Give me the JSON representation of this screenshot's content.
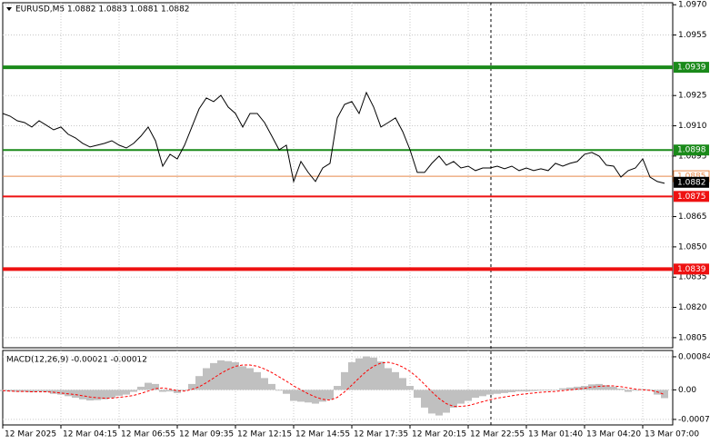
{
  "chart_data": {
    "type": "line",
    "title": "EURUSD,M5  1.0882 1.0883 1.0881 1.0882",
    "xticks": [
      "12 Mar 2025",
      "12 Mar 04:15",
      "12 Mar 06:55",
      "12 Mar 09:35",
      "12 Mar 12:15",
      "12 Mar 14:55",
      "12 Mar 17:35",
      "12 Mar 20:15",
      "12 Mar 22:55",
      "13 Mar 01:40",
      "13 Mar 04:20",
      "13 Mar 07:00"
    ],
    "series": [
      {
        "color": "#000000",
        "values": [
          1.09161,
          1.09148,
          1.09125,
          1.09116,
          1.09094,
          1.09125,
          1.09103,
          1.0908,
          1.09094,
          1.09058,
          1.0904,
          1.09013,
          1.08995,
          1.09004,
          1.09013,
          1.09026,
          1.09004,
          1.0899,
          1.09013,
          1.09049,
          1.09094,
          1.09026,
          1.089,
          1.08959,
          1.08936,
          1.09004,
          1.09094,
          1.09184,
          1.09238,
          1.0922,
          1.09251,
          1.09193,
          1.09161,
          1.09094,
          1.09161,
          1.09161,
          1.09116,
          1.09049,
          1.08981,
          1.09004,
          1.08824,
          1.08923,
          1.08869,
          1.08824,
          1.08891,
          1.08914,
          1.09139,
          1.09206,
          1.0922,
          1.09161,
          1.09265,
          1.09193,
          1.09094,
          1.09116,
          1.09139,
          1.09071,
          1.08981,
          1.08869,
          1.08869,
          1.08914,
          1.0895,
          1.08905,
          1.08923,
          1.08891,
          1.089,
          1.08878,
          1.08891,
          1.08891,
          1.089,
          1.08887,
          1.089,
          1.08878,
          1.08891,
          1.08878,
          1.08887,
          1.08878,
          1.08914,
          1.089,
          1.08914,
          1.08923,
          1.08959,
          1.08968,
          1.0895,
          1.08905,
          1.089,
          1.08846,
          1.08878,
          1.08891,
          1.08936,
          1.08846,
          1.08824,
          1.08815
        ]
      }
    ],
    "ylim": [
      1.08,
      1.0971
    ],
    "yticks": [
      {
        "value": 1.097,
        "label": "1.0970"
      },
      1.0955,
      1.0925,
      {
        "value": 1.091,
        "label": "1.0910"
      },
      1.0895,
      1.0865,
      {
        "value": 1.085,
        "label": "1.0850"
      },
      1.0835,
      {
        "value": 1.082,
        "label": "1.0820"
      },
      1.0805
    ],
    "grid": true,
    "levels": [
      {
        "value": 1.0939,
        "color": "#1a8a1a",
        "thick": true
      },
      {
        "value": 1.0898,
        "color": "#1a8a1a",
        "thick": false
      },
      {
        "value": 1.0885,
        "color": "#e8894a",
        "thick": false,
        "outline": true
      },
      {
        "value": 1.0875,
        "color": "#ee1111",
        "thick": false
      },
      {
        "value": 1.0839,
        "color": "#ee1111",
        "thick": true
      }
    ],
    "last_price": 1.0882,
    "macd": {
      "title": "MACD(12,26,9) -0.00021 -0.00012",
      "hist_color": "#c0c0c0",
      "signal_color": "#ff0000",
      "values": [
        -3e-05,
        -4e-05,
        -5e-05,
        -5e-05,
        -6e-05,
        -4e-05,
        -6e-05,
        -0.0001,
        -0.00012,
        -0.00016,
        -0.0002,
        -0.00024,
        -0.00027,
        -0.00026,
        -0.00024,
        -0.0002,
        -0.00015,
        -0.00012,
        -5e-05,
        8e-05,
        0.00018,
        0.00015,
        -5e-05,
        -4e-05,
        -8e-05,
        -2e-05,
        0.00015,
        0.00035,
        0.00055,
        0.00068,
        0.00075,
        0.00073,
        0.0007,
        0.0006,
        0.00055,
        0.00045,
        0.0003,
        0.00015,
        -2e-05,
        -0.0001,
        -0.00028,
        -0.0003,
        -0.00032,
        -0.00035,
        -0.0003,
        -0.00025,
        0.0001,
        0.00045,
        0.0007,
        0.0008,
        0.00085,
        0.00082,
        0.00072,
        0.00055,
        0.00045,
        0.0003,
        0.0001,
        -0.0002,
        -0.00045,
        -0.0006,
        -0.00065,
        -0.00058,
        -0.00045,
        -0.00035,
        -0.00028,
        -0.0002,
        -0.00016,
        -0.00012,
        -0.0001,
        -8e-05,
        -6e-05,
        -4e-05,
        -4e-05,
        -3e-05,
        -2e-05,
        -2e-05,
        0,
        4e-05,
        6e-05,
        8e-05,
        0.0001,
        0.00014,
        0.00015,
        0.00012,
        8e-05,
        3e-05,
        -5e-05,
        -2e-05,
        2e-05,
        -2e-05,
        -0.00012,
        -0.00021
      ],
      "signal": [
        -2e-05,
        -3e-05,
        -4e-05,
        -4e-05,
        -5e-05,
        -5e-05,
        -5e-05,
        -6e-05,
        -8e-05,
        -0.0001,
        -0.00012,
        -0.00015,
        -0.00018,
        -0.0002,
        -0.00021,
        -0.00021,
        -0.00019,
        -0.00017,
        -0.00014,
        -9e-05,
        -3e-05,
        3e-05,
        5e-05,
        2e-05,
        -2e-05,
        -3e-05,
        1e-05,
        8e-05,
        0.00018,
        0.0003,
        0.00042,
        0.00052,
        0.0006,
        0.00063,
        0.00063,
        0.0006,
        0.00053,
        0.00044,
        0.00033,
        0.00022,
        0.0001,
        0,
        -0.0001,
        -0.00018,
        -0.00024,
        -0.00026,
        -0.00019,
        -5e-05,
        0.00012,
        0.0003,
        0.00047,
        0.0006,
        0.00068,
        0.0007,
        0.00066,
        0.00058,
        0.00047,
        0.00032,
        0.00014,
        -5e-05,
        -0.00022,
        -0.00035,
        -0.00042,
        -0.00042,
        -0.0004,
        -0.00035,
        -0.0003,
        -0.00025,
        -0.00021,
        -0.00018,
        -0.00015,
        -0.00012,
        -0.0001,
        -8e-05,
        -6e-05,
        -5e-05,
        -4e-05,
        -2e-05,
        0,
        2e-05,
        4e-05,
        7e-05,
        9e-05,
        0.0001,
        0.0001,
        8e-05,
        5e-05,
        2e-05,
        0,
        -1e-05,
        -5e-05,
        -0.00012
      ],
      "y2lim": [
        -0.00089,
        0.001
      ],
      "y2ticks": [
        0.00084,
        {
          "value": 0,
          "label": "0.00"
        },
        -0.00075
      ]
    }
  }
}
